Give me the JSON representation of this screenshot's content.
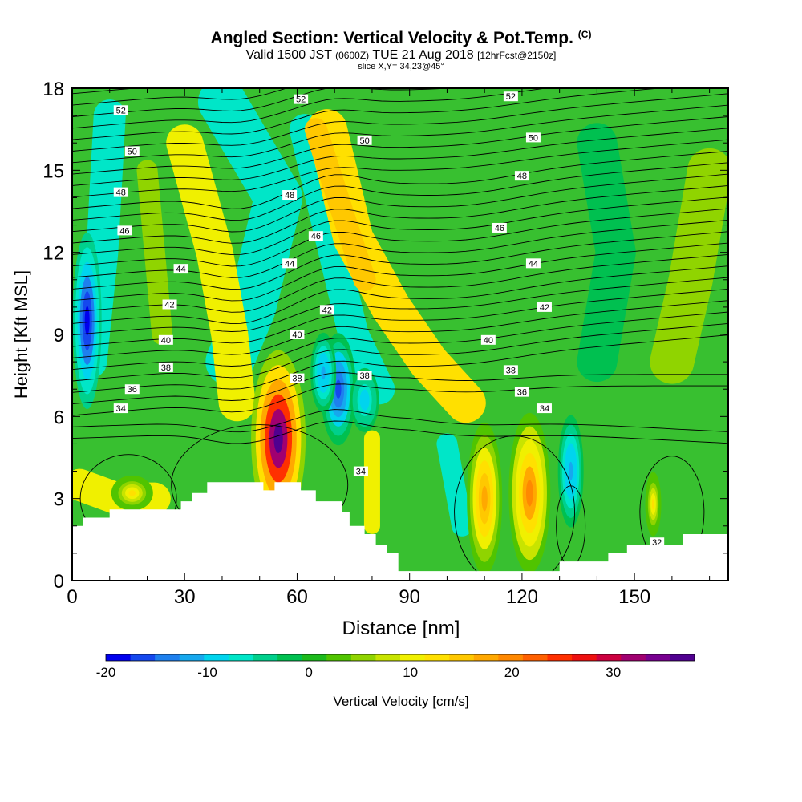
{
  "header": {
    "title": "Angled Section: Vertical Velocity & Pot.Temp.",
    "title_unit": "(C)",
    "valid_prefix": "Valid 1500 JST",
    "valid_utc": "(0600Z)",
    "valid_date": "TUE 21 Aug 2018",
    "forecast": "[12hrFcst@2150z]",
    "slice": "slice X,Y= 34,23@45°"
  },
  "chart_data": {
    "type": "heatmap",
    "xlabel": "Distance [nm]",
    "ylabel": "Height [Kft MSL]",
    "xlim": [
      0,
      175
    ],
    "ylim": [
      0,
      18
    ],
    "x_ticks": [
      "0",
      "30",
      "60",
      "90",
      "120",
      "150"
    ],
    "y_ticks": [
      "0",
      "3",
      "6",
      "9",
      "12",
      "15",
      "18"
    ],
    "colorbar": {
      "label": "Vertical Velocity [cm/s]",
      "range": [
        -20,
        38
      ],
      "ticks": [
        "-20",
        "-10",
        "0",
        "10",
        "20",
        "30"
      ],
      "colors": [
        "#0000ee",
        "#1548ee",
        "#1e80ee",
        "#16a8ee",
        "#00d4ee",
        "#00e6c8",
        "#00d08c",
        "#00c050",
        "#1cba1c",
        "#50c400",
        "#90d400",
        "#c8e400",
        "#f0f000",
        "#ffe000",
        "#ffc800",
        "#ffa800",
        "#ff8800",
        "#ff6000",
        "#ff3000",
        "#ee1010",
        "#cc0040",
        "#a00070",
        "#780090",
        "#500090"
      ]
    },
    "updrafts": [
      {
        "x": 55,
        "z": 5.2,
        "peak_cm_s": 37
      },
      {
        "x": 70,
        "z": 14.0,
        "peak_cm_s": 14
      },
      {
        "x": 110,
        "z": 3.0,
        "peak_cm_s": 18
      },
      {
        "x": 122,
        "z": 3.2,
        "peak_cm_s": 20
      },
      {
        "x": 40,
        "z": 10.0,
        "peak_cm_s": 12
      }
    ],
    "downdrafts": [
      {
        "x": 4,
        "z": 9.5,
        "peak_cm_s": -20
      },
      {
        "x": 71,
        "z": 7.0,
        "peak_cm_s": -16
      },
      {
        "x": 133,
        "z": 4.0,
        "peak_cm_s": -12
      },
      {
        "x": 38,
        "z": 15.0,
        "peak_cm_s": -7
      }
    ],
    "terrain": {
      "x": [
        0,
        3,
        3,
        10,
        10,
        20,
        20,
        29,
        29,
        32,
        32,
        36,
        36,
        51,
        51,
        54,
        54,
        61,
        61,
        65,
        65,
        72,
        72,
        74,
        74,
        78,
        78,
        81,
        81,
        84,
        84,
        87,
        87,
        104,
        104,
        130,
        130,
        143,
        143,
        148,
        148,
        163,
        163,
        175
      ],
      "height": [
        2.0,
        2.0,
        2.3,
        2.3,
        2.6,
        2.6,
        2.6,
        2.6,
        2.9,
        2.9,
        3.2,
        3.2,
        3.6,
        3.6,
        3.3,
        3.3,
        3.6,
        3.6,
        3.3,
        3.3,
        2.9,
        2.9,
        2.5,
        2.5,
        2.0,
        2.0,
        1.7,
        1.7,
        1.3,
        1.3,
        1.0,
        1.0,
        0.35,
        0.35,
        0.35,
        0.35,
        0.7,
        0.7,
        1.0,
        1.0,
        1.3,
        1.3,
        1.7,
        1.7
      ]
    },
    "isentrope_labels": [
      {
        "text": "52",
        "x": 13,
        "z": 17.2
      },
      {
        "text": "52",
        "x": 61,
        "z": 17.6
      },
      {
        "text": "52",
        "x": 117,
        "z": 17.7
      },
      {
        "text": "50",
        "x": 16,
        "z": 15.7
      },
      {
        "text": "50",
        "x": 78,
        "z": 16.1
      },
      {
        "text": "50",
        "x": 123,
        "z": 16.2
      },
      {
        "text": "48",
        "x": 13,
        "z": 14.2
      },
      {
        "text": "48",
        "x": 58,
        "z": 14.1
      },
      {
        "text": "48",
        "x": 120,
        "z": 14.8
      },
      {
        "text": "46",
        "x": 14,
        "z": 12.8
      },
      {
        "text": "46",
        "x": 65,
        "z": 12.6
      },
      {
        "text": "46",
        "x": 114,
        "z": 12.9
      },
      {
        "text": "44",
        "x": 29,
        "z": 11.4
      },
      {
        "text": "44",
        "x": 58,
        "z": 11.6
      },
      {
        "text": "44",
        "x": 123,
        "z": 11.6
      },
      {
        "text": "42",
        "x": 26,
        "z": 10.1
      },
      {
        "text": "42",
        "x": 68,
        "z": 9.9
      },
      {
        "text": "42",
        "x": 126,
        "z": 10.0
      },
      {
        "text": "40",
        "x": 25,
        "z": 8.8
      },
      {
        "text": "40",
        "x": 60,
        "z": 9.0
      },
      {
        "text": "40",
        "x": 111,
        "z": 8.8
      },
      {
        "text": "38",
        "x": 25,
        "z": 7.8
      },
      {
        "text": "38",
        "x": 60,
        "z": 7.4
      },
      {
        "text": "38",
        "x": 78,
        "z": 7.5
      },
      {
        "text": "38",
        "x": 117,
        "z": 7.7
      },
      {
        "text": "36",
        "x": 16,
        "z": 7.0
      },
      {
        "text": "36",
        "x": 120,
        "z": 6.9
      },
      {
        "text": "34",
        "x": 13,
        "z": 6.3
      },
      {
        "text": "34",
        "x": 77,
        "z": 4.0
      },
      {
        "text": "34",
        "x": 126,
        "z": 6.3
      },
      {
        "text": "32",
        "x": 156,
        "z": 1.4
      }
    ]
  }
}
